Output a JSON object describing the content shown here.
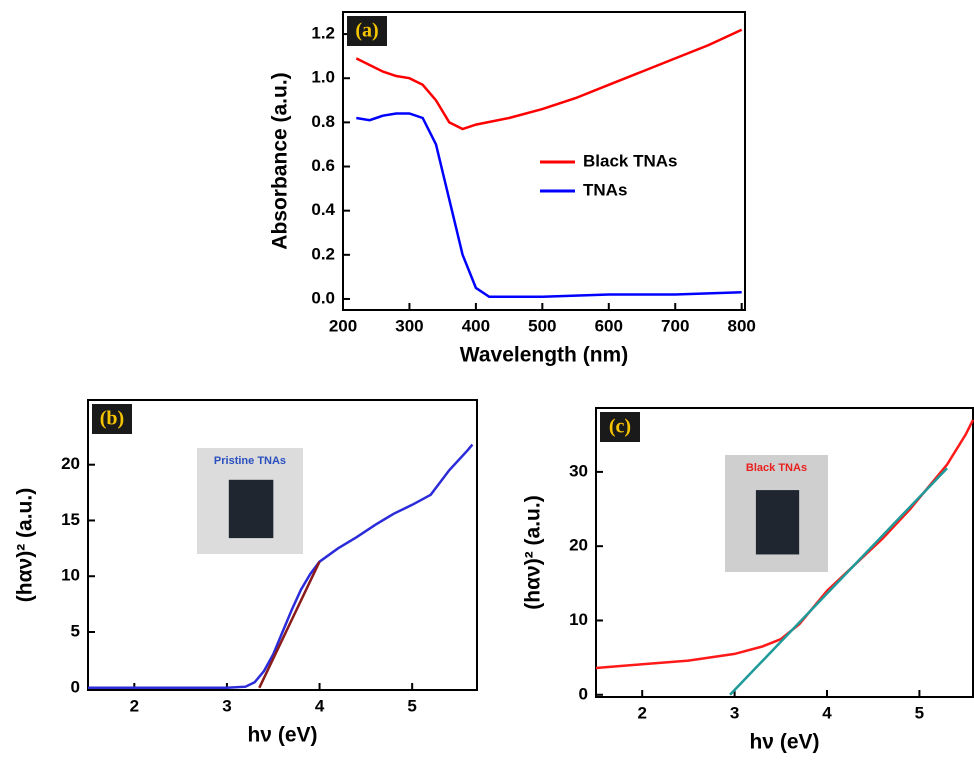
{
  "chart_data": [
    {
      "type": "line",
      "panel_label": "(a)",
      "x_label": "Wavelength (nm)",
      "y_label": "Absorbance (a.u.)",
      "xlim": [
        200,
        805
      ],
      "ylim": [
        -0.05,
        1.3
      ],
      "xticks": [
        200,
        300,
        400,
        500,
        600,
        700,
        800
      ],
      "yticks": [
        {
          "value": 0,
          "label": "0.0"
        },
        0.2,
        0.4,
        0.6,
        0.8,
        {
          "value": 1,
          "label": "1.0"
        },
        1.2
      ],
      "legend": "right",
      "series": [
        {
          "name": "Black TNAs",
          "color": "#ff0000",
          "x": [
            220,
            240,
            260,
            280,
            300,
            320,
            340,
            360,
            380,
            400,
            450,
            500,
            550,
            600,
            650,
            700,
            750,
            800
          ],
          "values": [
            1.09,
            1.06,
            1.03,
            1.01,
            1.0,
            0.97,
            0.9,
            0.8,
            0.77,
            0.79,
            0.82,
            0.86,
            0.91,
            0.97,
            1.03,
            1.09,
            1.15,
            1.22
          ]
        },
        {
          "name": "TNAs",
          "color": "#0000ff",
          "x": [
            220,
            240,
            260,
            280,
            300,
            320,
            340,
            360,
            380,
            400,
            420,
            450,
            500,
            600,
            700,
            800
          ],
          "values": [
            0.82,
            0.81,
            0.83,
            0.84,
            0.84,
            0.82,
            0.7,
            0.45,
            0.2,
            0.05,
            0.01,
            0.01,
            0.01,
            0.02,
            0.02,
            0.03
          ]
        }
      ]
    },
    {
      "type": "line",
      "panel_label": "(b)",
      "x_label": "hν (eV)",
      "y_label": "(hαν)² (a.u.)",
      "inset_label": "Pristine TNAs",
      "inset_color": "#2a4fbf",
      "xlim": [
        1.5,
        5.7
      ],
      "ylim": [
        -0.2,
        25.8
      ],
      "xticks": [
        2,
        3,
        4,
        5
      ],
      "yticks": [
        0,
        5,
        10,
        15,
        20
      ],
      "series": [
        {
          "color": "#2b2bd9",
          "x": [
            1.5,
            3.0,
            3.2,
            3.3,
            3.4,
            3.5,
            3.6,
            3.7,
            3.8,
            3.9,
            4.0,
            4.2,
            4.4,
            4.6,
            4.8,
            5.0,
            5.2,
            5.4,
            5.6,
            5.65
          ],
          "values": [
            0,
            0,
            0.1,
            0.5,
            1.5,
            3,
            5,
            7,
            8.8,
            10.2,
            11.3,
            12.5,
            13.5,
            14.6,
            15.6,
            16.4,
            17.3,
            19.5,
            21.3,
            21.8
          ]
        },
        {
          "color": "#8b1a1a",
          "x": [
            3.35,
            4.0
          ],
          "values": [
            0,
            11.3
          ]
        }
      ]
    },
    {
      "type": "line",
      "panel_label": "(c)",
      "x_label": "hν (eV)",
      "y_label": "(hαν)² (a.u.)",
      "inset_label": "Black TNAs",
      "inset_color": "#e8201e",
      "xlim": [
        1.5,
        5.58
      ],
      "ylim": [
        -0.3,
        38.6
      ],
      "xticks": [
        2,
        3,
        4,
        5
      ],
      "yticks": [
        0,
        10,
        20,
        30
      ],
      "series": [
        {
          "color": "#ff1a1a",
          "x": [
            1.5,
            2,
            2.5,
            3,
            3.3,
            3.5,
            3.7,
            4,
            4.3,
            4.6,
            4.9,
            5.1,
            5.3,
            5.5,
            5.58
          ],
          "values": [
            3.6,
            4.1,
            4.6,
            5.5,
            6.5,
            7.5,
            9.5,
            14,
            17.5,
            21,
            25,
            28,
            31,
            35,
            37
          ]
        },
        {
          "color": "#1f9a9a",
          "x": [
            2.95,
            5.3
          ],
          "values": [
            0,
            30.5
          ]
        }
      ]
    }
  ]
}
